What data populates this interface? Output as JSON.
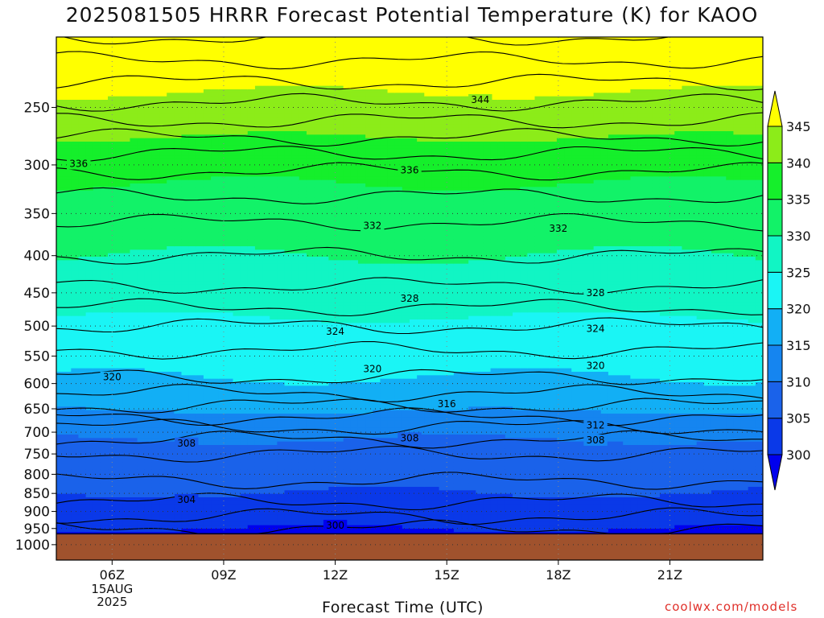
{
  "chart_data": {
    "type": "heatmap",
    "title": "2025081505 HRRR Forecast Potential Temperature (K) for KAOO",
    "xlabel": "Forecast Time (UTC)",
    "ylabel": "",
    "x_ticks": [
      "06Z",
      "09Z",
      "12Z",
      "15Z",
      "18Z",
      "21Z"
    ],
    "x_sub_label": [
      "15AUG",
      "2025"
    ],
    "y_ticks": [
      250,
      300,
      350,
      400,
      450,
      500,
      550,
      600,
      650,
      700,
      750,
      800,
      850,
      900,
      950,
      1000
    ],
    "y_range": [
      1050,
      200
    ],
    "colorbar": {
      "ticks": [
        300,
        305,
        310,
        315,
        320,
        325,
        330,
        335,
        340,
        345
      ],
      "bins": [
        {
          "value": 302.5,
          "color": "#0a39e8"
        },
        {
          "value": 307.5,
          "color": "#1a62ea"
        },
        {
          "value": 312.5,
          "color": "#1585f0"
        },
        {
          "value": 317.5,
          "color": "#12aff5"
        },
        {
          "value": 322.5,
          "color": "#1af5f5"
        },
        {
          "value": 327.5,
          "color": "#11f5c4"
        },
        {
          "value": 332.5,
          "color": "#12f268"
        },
        {
          "value": 337.5,
          "color": "#15ef2b"
        },
        {
          "value": 342.5,
          "color": "#8cec19"
        },
        {
          "value": 345,
          "color": "#f6f41a"
        }
      ],
      "under_color": "#0000ee",
      "over_color": "#ffff00"
    },
    "terrain_color": "#a0522d",
    "contour_labels": [
      {
        "text": "344",
        "time": 15.9,
        "pressure": 244
      },
      {
        "text": "336",
        "time": 5.1,
        "pressure": 299
      },
      {
        "text": "336",
        "time": 14.0,
        "pressure": 305
      },
      {
        "text": "332",
        "time": 13.0,
        "pressure": 364
      },
      {
        "text": "332",
        "time": 18.0,
        "pressure": 367
      },
      {
        "text": "328",
        "time": 14.0,
        "pressure": 458
      },
      {
        "text": "328",
        "time": 19.0,
        "pressure": 450
      },
      {
        "text": "324",
        "time": 12.0,
        "pressure": 509
      },
      {
        "text": "324",
        "time": 19.0,
        "pressure": 504
      },
      {
        "text": "320",
        "time": 6.0,
        "pressure": 588
      },
      {
        "text": "320",
        "time": 13.0,
        "pressure": 573
      },
      {
        "text": "320",
        "time": 19.0,
        "pressure": 567
      },
      {
        "text": "316",
        "time": 15.0,
        "pressure": 640
      },
      {
        "text": "312",
        "time": 19.0,
        "pressure": 685
      },
      {
        "text": "308",
        "time": 8.0,
        "pressure": 725
      },
      {
        "text": "308",
        "time": 14.0,
        "pressure": 713
      },
      {
        "text": "308",
        "time": 19.0,
        "pressure": 718
      },
      {
        "text": "304",
        "time": 8.0,
        "pressure": 867
      },
      {
        "text": "300",
        "time": 12.0,
        "pressure": 941
      }
    ]
  },
  "credit": "coolwx.com/models"
}
